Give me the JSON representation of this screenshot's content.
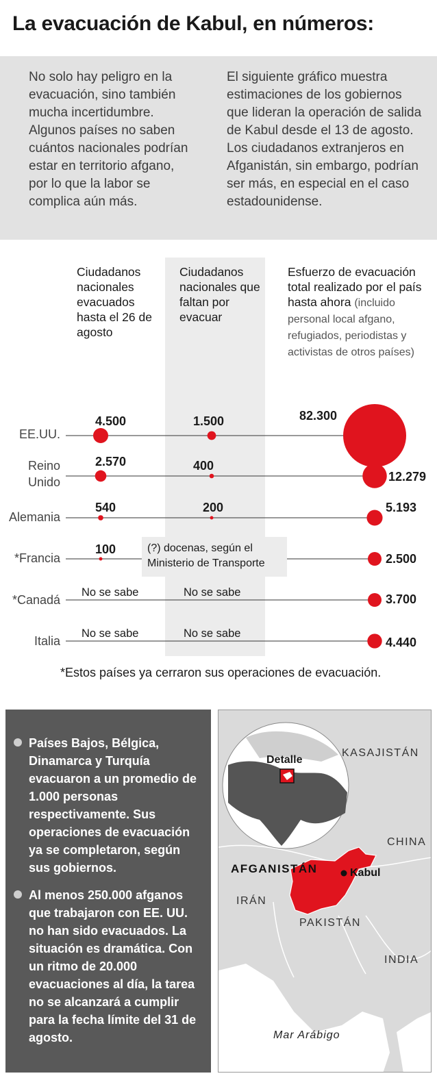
{
  "title": "La evacuación de Kabul, en números:",
  "intro": {
    "left": "No solo hay peligro en la evacuación, sino también mucha incertidumbre. Algunos países no saben cuántos nacionales podrían estar en territorio afgano, por lo que la labor se complica aún más.",
    "right": "El siguiente gráfico muestra estimaciones de los gobiernos que lideran la operación de salida de Kabul desde el 13 de agosto. Los ciudadanos extranjeros en Afganistán, sin embargo, podrían ser más, en especial en el caso estadounidense."
  },
  "columns": {
    "evacuated": "Ciudadanos nacionales evacuados hasta el 26 de agosto",
    "remaining": "Ciudadanos nacionales que faltan por evacuar",
    "total_main": "Esfuerzo de evacuación total realizado por el país hasta ahora",
    "total_note": "(incluido personal local afgano, refugiados, periodistas y activistas de otros países)"
  },
  "chart_data": {
    "type": "bubble-table",
    "accent_color": "#e0141e",
    "categories": [
      "EE.UU.",
      "Reino Unido",
      "Alemania",
      "*Francia",
      "*Canadá",
      "Italia"
    ],
    "series": [
      {
        "name": "Ciudadanos nacionales evacuados hasta el 26 de agosto",
        "values": [
          4500,
          2570,
          540,
          100,
          null,
          null
        ],
        "labels": [
          "4.500",
          "2.570",
          "540",
          "100",
          "No se sabe",
          "No se sabe"
        ]
      },
      {
        "name": "Ciudadanos nacionales que faltan por evacuar",
        "values": [
          1500,
          400,
          200,
          null,
          null,
          null
        ],
        "labels": [
          "1.500",
          "400",
          "200",
          "",
          "No se sabe",
          "No se sabe"
        ]
      },
      {
        "name": "Esfuerzo de evacuación total realizado por el país hasta ahora",
        "values": [
          82300,
          12279,
          5193,
          2500,
          3700,
          4440
        ],
        "labels": [
          "82.300",
          "12.279",
          "5.193",
          "2.500",
          "3.700",
          "4.440"
        ]
      }
    ],
    "annotation": "(?) docenas, según el Ministerio de Transporte",
    "footnote": "*Estos países ya cerraron sus operaciones de evacuación."
  },
  "facts": [
    "Países Bajos, Bélgica, Dinamarca y Turquía evacuaron a un promedio de 1.000 personas respectivamente. Sus operaciones de evacuación ya se completaron, según sus gobiernos.",
    "Al menos 250.000 afganos que trabajaron con EE. UU. no han sido evacuados. La situación es dramática. Con un ritmo de 20.000 evacuaciones al día, la tarea no se alcanzará a cumplir para la fecha límite del 31 de agosto."
  ],
  "map": {
    "detail": "Detalle",
    "kasajistan": "KASAJISTÁN",
    "china": "CHINA",
    "afganistan": "AFGANISTÁN",
    "kabul": "Kabul",
    "iran": "IRÁN",
    "pakistan": "PAKISTÁN",
    "india": "INDIA",
    "sea": "Mar Arábigo"
  }
}
